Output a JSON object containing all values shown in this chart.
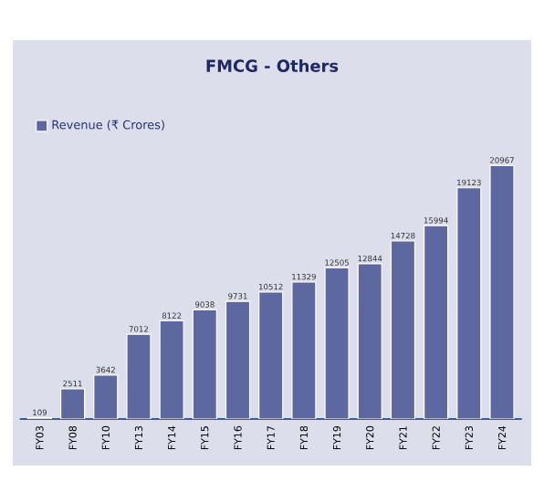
{
  "chart_data": {
    "type": "bar",
    "title": "FMCG - Others",
    "categories": [
      "FY03",
      "FY08",
      "FY10",
      "FY13",
      "FY14",
      "FY15",
      "FY16",
      "FY17",
      "FY18",
      "FY19",
      "FY20",
      "FY21",
      "FY22",
      "FY23",
      "FY24"
    ],
    "series": [
      {
        "name": "Revenue (₹ Crores)",
        "color": "#5d67a0",
        "values": [
          109,
          2511,
          3642,
          7012,
          8122,
          9038,
          9731,
          10512,
          11329,
          12505,
          12844,
          14728,
          15994,
          19123,
          20967
        ]
      }
    ],
    "data_labels": true,
    "legend": "top left"
  }
}
